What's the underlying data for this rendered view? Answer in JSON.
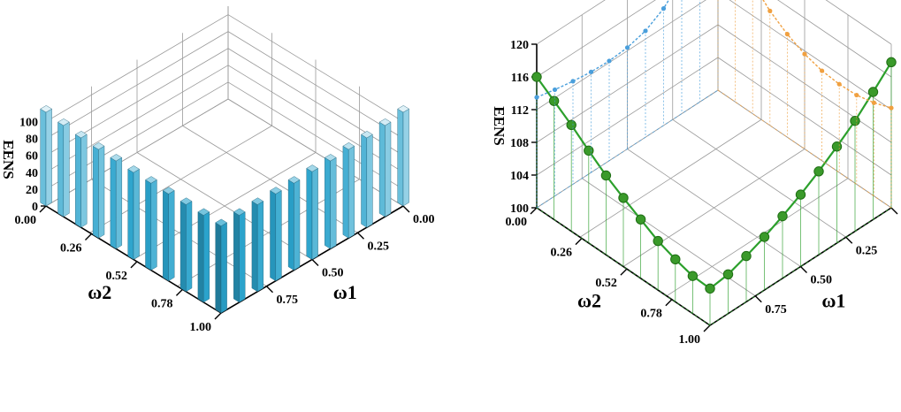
{
  "chart_data": [
    {
      "type": "bar3d",
      "zlabel": "EENS",
      "xlabel": "ω1",
      "ylabel": "ω2",
      "zlim": [
        0,
        110
      ],
      "z_ticks": [
        "0",
        "20",
        "40",
        "60",
        "80",
        "100"
      ],
      "w1_ticks": [
        "0.00",
        "0.25",
        "0.50",
        "0.75"
      ],
      "w2_ticks": [
        "0.00",
        "0.26",
        "0.52",
        "0.78",
        "1.00"
      ],
      "bar_color": "#2aa3cc",
      "bars": [
        {
          "w1": 0.0,
          "w2": 0.0,
          "value": 111
        },
        {
          "w1": 0.0,
          "w2": 0.1,
          "value": 108
        },
        {
          "w1": 0.0,
          "w2": 0.2,
          "value": 106
        },
        {
          "w1": 0.0,
          "w2": 0.3,
          "value": 105
        },
        {
          "w1": 0.0,
          "w2": 0.4,
          "value": 104
        },
        {
          "w1": 0.0,
          "w2": 0.5,
          "value": 103
        },
        {
          "w1": 0.0,
          "w2": 0.6,
          "value": 103
        },
        {
          "w1": 0.0,
          "w2": 0.7,
          "value": 103
        },
        {
          "w1": 0.0,
          "w2": 0.8,
          "value": 103
        },
        {
          "w1": 0.0,
          "w2": 0.9,
          "value": 103
        },
        {
          "w1": 0.0,
          "w2": 1.0,
          "value": 103
        },
        {
          "w1": 0.1,
          "w2": 1.0,
          "value": 103
        },
        {
          "w1": 0.2,
          "w2": 1.0,
          "value": 103
        },
        {
          "w1": 0.3,
          "w2": 1.0,
          "value": 103
        },
        {
          "w1": 0.4,
          "w2": 1.0,
          "value": 103
        },
        {
          "w1": 0.5,
          "w2": 1.0,
          "value": 104
        },
        {
          "w1": 0.6,
          "w2": 1.0,
          "value": 104
        },
        {
          "w1": 0.7,
          "w2": 1.0,
          "value": 105
        },
        {
          "w1": 0.8,
          "w2": 1.0,
          "value": 106
        },
        {
          "w1": 0.9,
          "w2": 1.0,
          "value": 108
        },
        {
          "w1": 1.0,
          "w2": 1.0,
          "value": 111
        }
      ]
    },
    {
      "type": "line3d",
      "zlabel": "EENS",
      "xlabel": "ω1",
      "ylabel": "ω2",
      "zlim": [
        100,
        120
      ],
      "z_ticks": [
        "100",
        "104",
        "108",
        "112",
        "116",
        "120"
      ],
      "w1_ticks": [
        "0.00",
        "0.25",
        "0.50",
        "0.75"
      ],
      "w2_ticks": [
        "0.00",
        "0.26",
        "0.52",
        "0.78",
        "1.00"
      ],
      "series": [
        {
          "color": "#2ca02c",
          "points": [
            {
              "w1": 0.0,
              "w2": 0.0,
              "value": 116.0
            },
            {
              "w1": 0.0,
              "w2": 0.1,
              "value": 114.5
            },
            {
              "w1": 0.0,
              "w2": 0.2,
              "value": 113.0
            },
            {
              "w1": 0.0,
              "w2": 0.3,
              "value": 111.3
            },
            {
              "w1": 0.0,
              "w2": 0.4,
              "value": 109.7
            },
            {
              "w1": 0.0,
              "w2": 0.5,
              "value": 108.4
            },
            {
              "w1": 0.0,
              "w2": 0.6,
              "value": 107.2
            },
            {
              "w1": 0.0,
              "w2": 0.7,
              "value": 106.0
            },
            {
              "w1": 0.0,
              "w2": 0.8,
              "value": 105.2
            },
            {
              "w1": 0.0,
              "w2": 0.9,
              "value": 104.6
            },
            {
              "w1": 0.0,
              "w2": 1.0,
              "value": 104.5
            },
            {
              "w1": 0.1,
              "w2": 1.0,
              "value": 104.8
            },
            {
              "w1": 0.2,
              "w2": 1.0,
              "value": 105.6
            },
            {
              "w1": 0.3,
              "w2": 1.0,
              "value": 106.5
            },
            {
              "w1": 0.4,
              "w2": 1.0,
              "value": 107.6
            },
            {
              "w1": 0.5,
              "w2": 1.0,
              "value": 108.8
            },
            {
              "w1": 0.6,
              "w2": 1.0,
              "value": 110.2
            },
            {
              "w1": 0.7,
              "w2": 1.0,
              "value": 111.8
            },
            {
              "w1": 0.8,
              "w2": 1.0,
              "value": 113.5
            },
            {
              "w1": 0.9,
              "w2": 1.0,
              "value": 115.6
            },
            {
              "w1": 1.0,
              "w2": 1.0,
              "value": 117.8
            }
          ]
        },
        {
          "color": "#4a9fdc",
          "points": [
            {
              "w1": 0.0,
              "w2": 0.0,
              "value": 113.5
            },
            {
              "w1": 0.1,
              "w2": 0.0,
              "value": 113.0
            },
            {
              "w1": 0.2,
              "w2": 0.0,
              "value": 112.6
            },
            {
              "w1": 0.3,
              "w2": 0.0,
              "value": 112.3
            },
            {
              "w1": 0.4,
              "w2": 0.0,
              "value": 112.2
            },
            {
              "w1": 0.5,
              "w2": 0.0,
              "value": 112.4
            },
            {
              "w1": 0.6,
              "w2": 0.0,
              "value": 113.0
            },
            {
              "w1": 0.7,
              "w2": 0.0,
              "value": 114.3
            },
            {
              "w1": 0.8,
              "w2": 0.0,
              "value": 116.5
            },
            {
              "w1": 0.9,
              "w2": 0.0,
              "value": 120.0
            },
            {
              "w1": 1.0,
              "w2": 0.0,
              "value": 126.0
            }
          ]
        },
        {
          "color": "#f0a040",
          "points": [
            {
              "w1": 1.0,
              "w2": 0.0,
              "value": 123.0
            },
            {
              "w1": 1.0,
              "w2": 0.1,
              "value": 119.0
            },
            {
              "w1": 1.0,
              "w2": 0.2,
              "value": 116.0
            },
            {
              "w1": 1.0,
              "w2": 0.3,
              "value": 114.0
            },
            {
              "w1": 1.0,
              "w2": 0.4,
              "value": 112.6
            },
            {
              "w1": 1.0,
              "w2": 0.5,
              "value": 111.6
            },
            {
              "w1": 1.0,
              "w2": 0.6,
              "value": 111.0
            },
            {
              "w1": 1.0,
              "w2": 0.7,
              "value": 110.8
            },
            {
              "w1": 1.0,
              "w2": 0.8,
              "value": 110.9
            },
            {
              "w1": 1.0,
              "w2": 0.9,
              "value": 111.4
            },
            {
              "w1": 1.0,
              "w2": 1.0,
              "value": 112.2
            }
          ]
        }
      ]
    }
  ]
}
